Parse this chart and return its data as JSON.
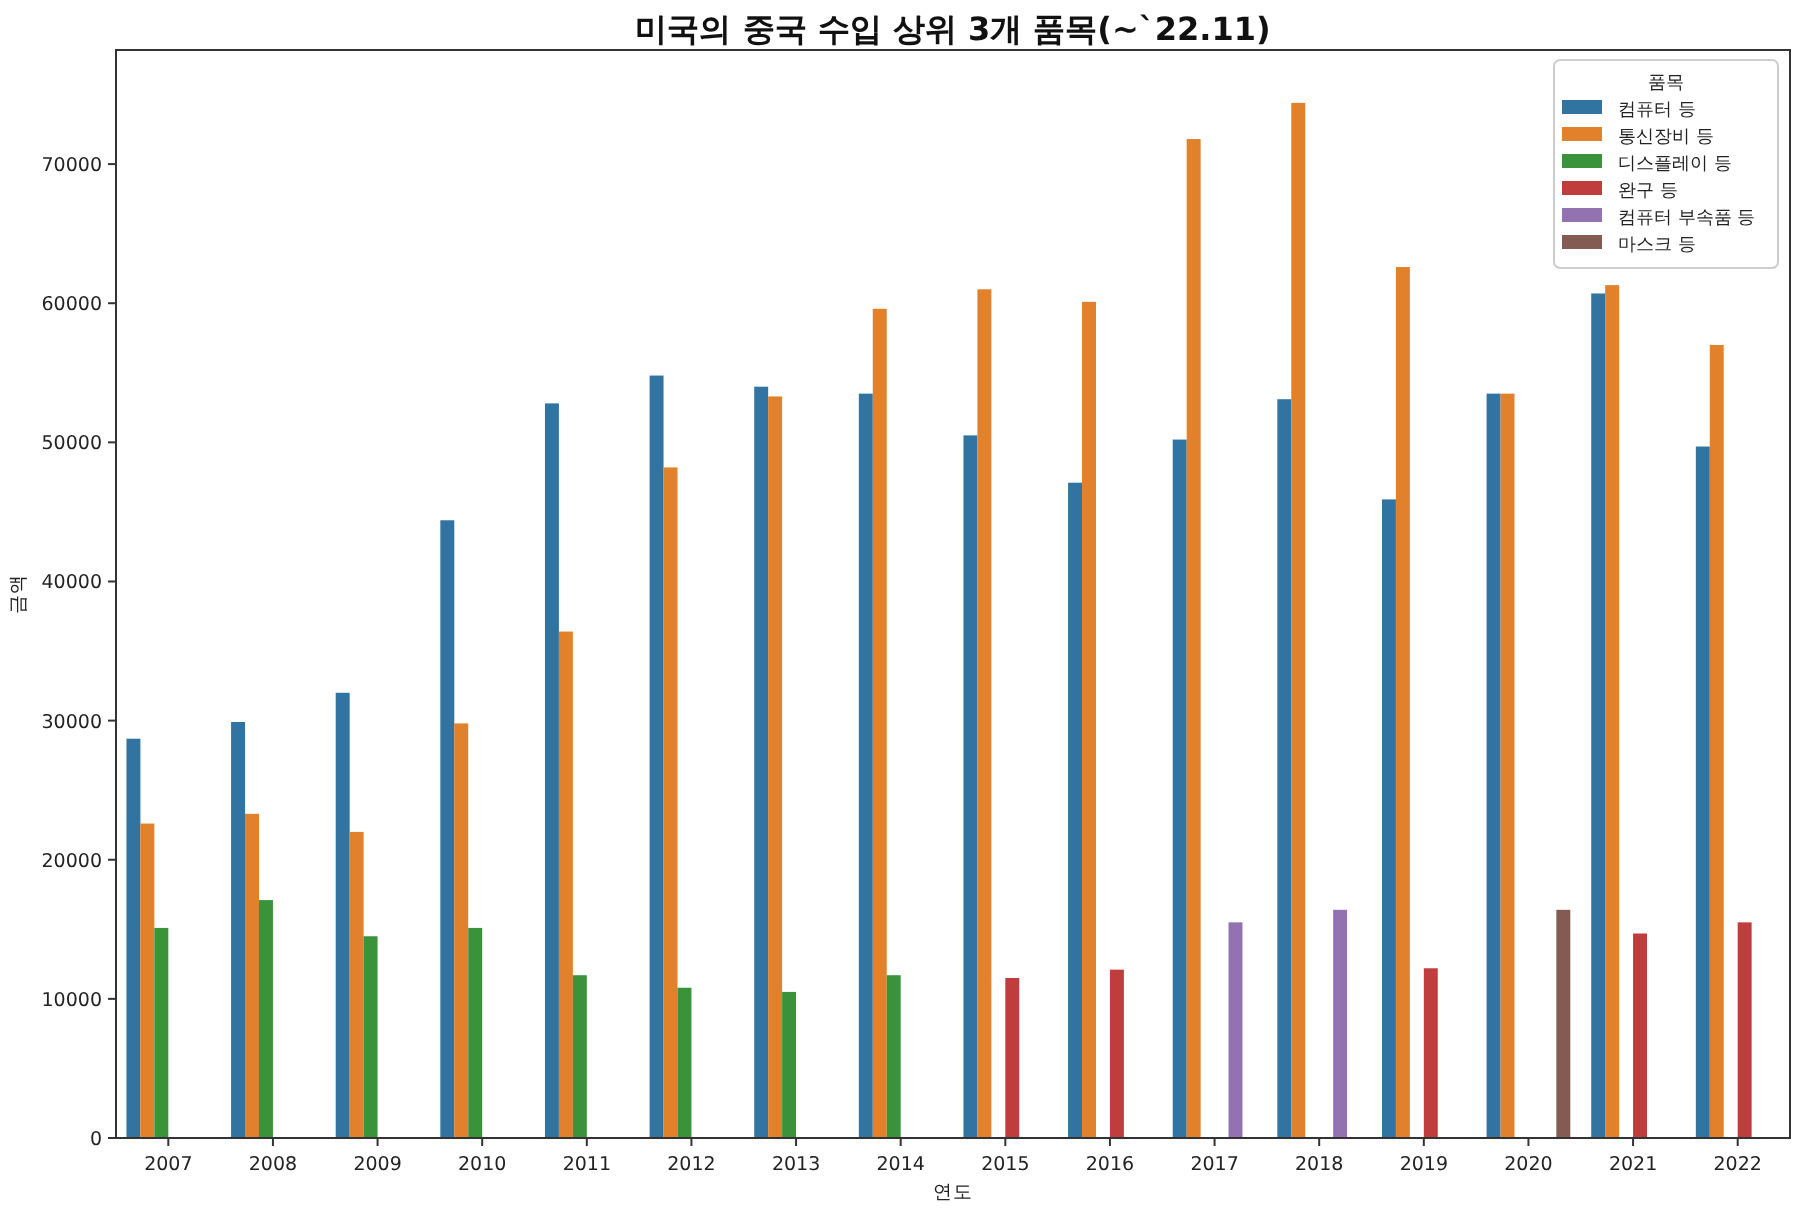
{
  "chart_data": {
    "type": "bar",
    "title": "미국의 중국 수입 상위 3개 품목(~`22.11)",
    "xlabel": "연도",
    "ylabel": "금액",
    "legend_title": "품목",
    "legend": "top right",
    "categories": [
      "2007",
      "2008",
      "2009",
      "2010",
      "2011",
      "2012",
      "2013",
      "2014",
      "2015",
      "2016",
      "2017",
      "2018",
      "2019",
      "2020",
      "2021",
      "2022"
    ],
    "ylim": [
      0,
      78200
    ],
    "yticks": [
      0,
      10000,
      20000,
      30000,
      40000,
      50000,
      60000,
      70000
    ],
    "series": [
      {
        "name": "컴퓨터 등",
        "color": "#3274a1",
        "values": [
          28700,
          29900,
          32000,
          44400,
          52800,
          54800,
          54000,
          53500,
          50500,
          47100,
          50200,
          53100,
          45900,
          53500,
          60700,
          49700
        ]
      },
      {
        "name": "통신장비 등",
        "color": "#e1812c",
        "values": [
          22600,
          23300,
          22000,
          29800,
          36400,
          48200,
          53300,
          59600,
          61000,
          60100,
          71800,
          74400,
          62600,
          53500,
          61300,
          57000
        ]
      },
      {
        "name": "디스플레이 등",
        "color": "#3a923a",
        "values": [
          15100,
          17100,
          14500,
          15100,
          11700,
          10800,
          10500,
          11700,
          null,
          null,
          null,
          null,
          null,
          null,
          null,
          null
        ]
      },
      {
        "name": "완구 등",
        "color": "#c03d3e",
        "values": [
          null,
          null,
          null,
          null,
          null,
          null,
          null,
          null,
          11500,
          12100,
          null,
          null,
          12200,
          null,
          14700,
          15500
        ]
      },
      {
        "name": "컴퓨터 부속품 등",
        "color": "#9372b2",
        "values": [
          null,
          null,
          null,
          null,
          null,
          null,
          null,
          null,
          null,
          null,
          15500,
          16400,
          null,
          null,
          null,
          null
        ]
      },
      {
        "name": "마스크 등",
        "color": "#845b53",
        "values": [
          null,
          null,
          null,
          null,
          null,
          null,
          null,
          null,
          null,
          null,
          null,
          null,
          null,
          16400,
          null,
          null
        ]
      }
    ]
  }
}
